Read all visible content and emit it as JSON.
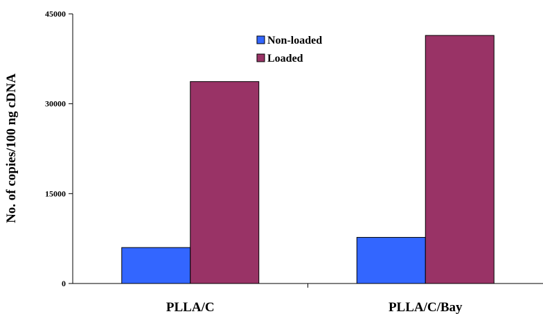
{
  "chart_data": {
    "type": "bar",
    "categories": [
      "PLLA/C",
      "PLLA/C/Bay"
    ],
    "series": [
      {
        "name": "Non-loaded",
        "values": [
          6000,
          7700
        ],
        "color": "#3366ff"
      },
      {
        "name": "Loaded",
        "values": [
          33700,
          41400
        ],
        "color": "#993366"
      }
    ],
    "title": "",
    "xlabel": "",
    "ylabel": "No. of copies/100 ng cDNA",
    "ylim": [
      0,
      45000
    ],
    "yticks": [
      0,
      15000,
      30000,
      45000
    ],
    "grid": false,
    "legend_position": "top-center"
  }
}
